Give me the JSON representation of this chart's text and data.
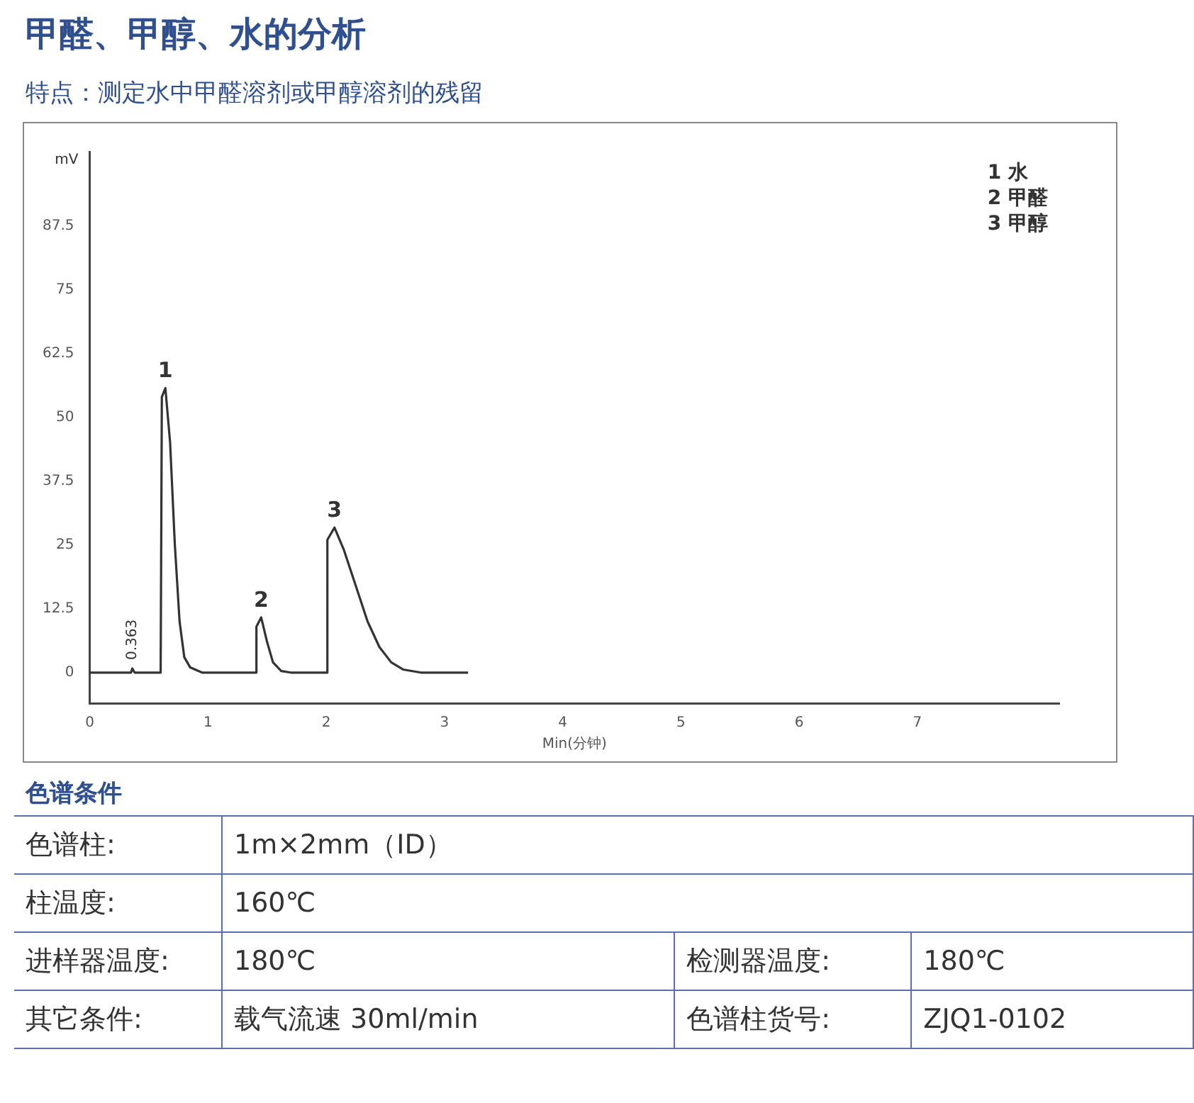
{
  "chart_data": {
    "type": "line",
    "title": "甲醛、甲醇、水的分析",
    "subtitle": "特点：测定水中甲醛溶剂或甲醇溶剂的残留",
    "xlabel": "Min(分钟)",
    "ylabel": "mV",
    "series": [
      {
        "color": "#333333",
        "x": [
          0,
          0.35,
          0.36,
          0.38,
          0.6,
          0.61,
          0.64,
          0.68,
          0.72,
          0.76,
          0.8,
          0.85,
          0.95,
          1.3,
          1.4,
          1.41,
          1.45,
          1.5,
          1.55,
          1.62,
          1.7,
          2.0,
          2.01,
          2.07,
          2.15,
          2.25,
          2.35,
          2.45,
          2.55,
          2.65,
          2.8,
          3.2
        ],
        "values": [
          0,
          0,
          0.8,
          0,
          0,
          54,
          55.7,
          45,
          25,
          10,
          3,
          1,
          0,
          0,
          0,
          9,
          10.8,
          6,
          2,
          0.3,
          0,
          0,
          26,
          28.4,
          24,
          17,
          10,
          5,
          2,
          0.6,
          0,
          0
        ]
      }
    ],
    "xlim": [
      0,
      8.2
    ],
    "xticks": [
      0,
      1,
      2,
      3,
      4,
      5,
      6,
      7
    ],
    "ylim": [
      -6,
      102
    ],
    "yticks": [
      0,
      12.5,
      25,
      37.5,
      50,
      62.5,
      75,
      87.5
    ],
    "grid": false,
    "legend": false,
    "marker": "none",
    "line_style": "solid",
    "annotations": [
      "1  水",
      "2  甲醛",
      "3  甲醇",
      {
        "text": "1",
        "x": 0.64,
        "y": 55.7
      },
      {
        "text": "2",
        "x": 1.45,
        "y": 10.8
      },
      {
        "text": "3",
        "x": 2.07,
        "y": 28.4
      },
      {
        "text": "0.363",
        "x": 0.363,
        "y": 0.8
      },
      "色谱条件",
      "色谱柱:",
      "1m×2mm（ID）",
      "柱温度:",
      "160℃",
      "进样器温度:",
      "180℃",
      "检测器温度:",
      "180℃",
      "其它条件:",
      "载气流速 30ml/min",
      "色谱柱货号:",
      "ZJQ1-0102"
    ]
  }
}
